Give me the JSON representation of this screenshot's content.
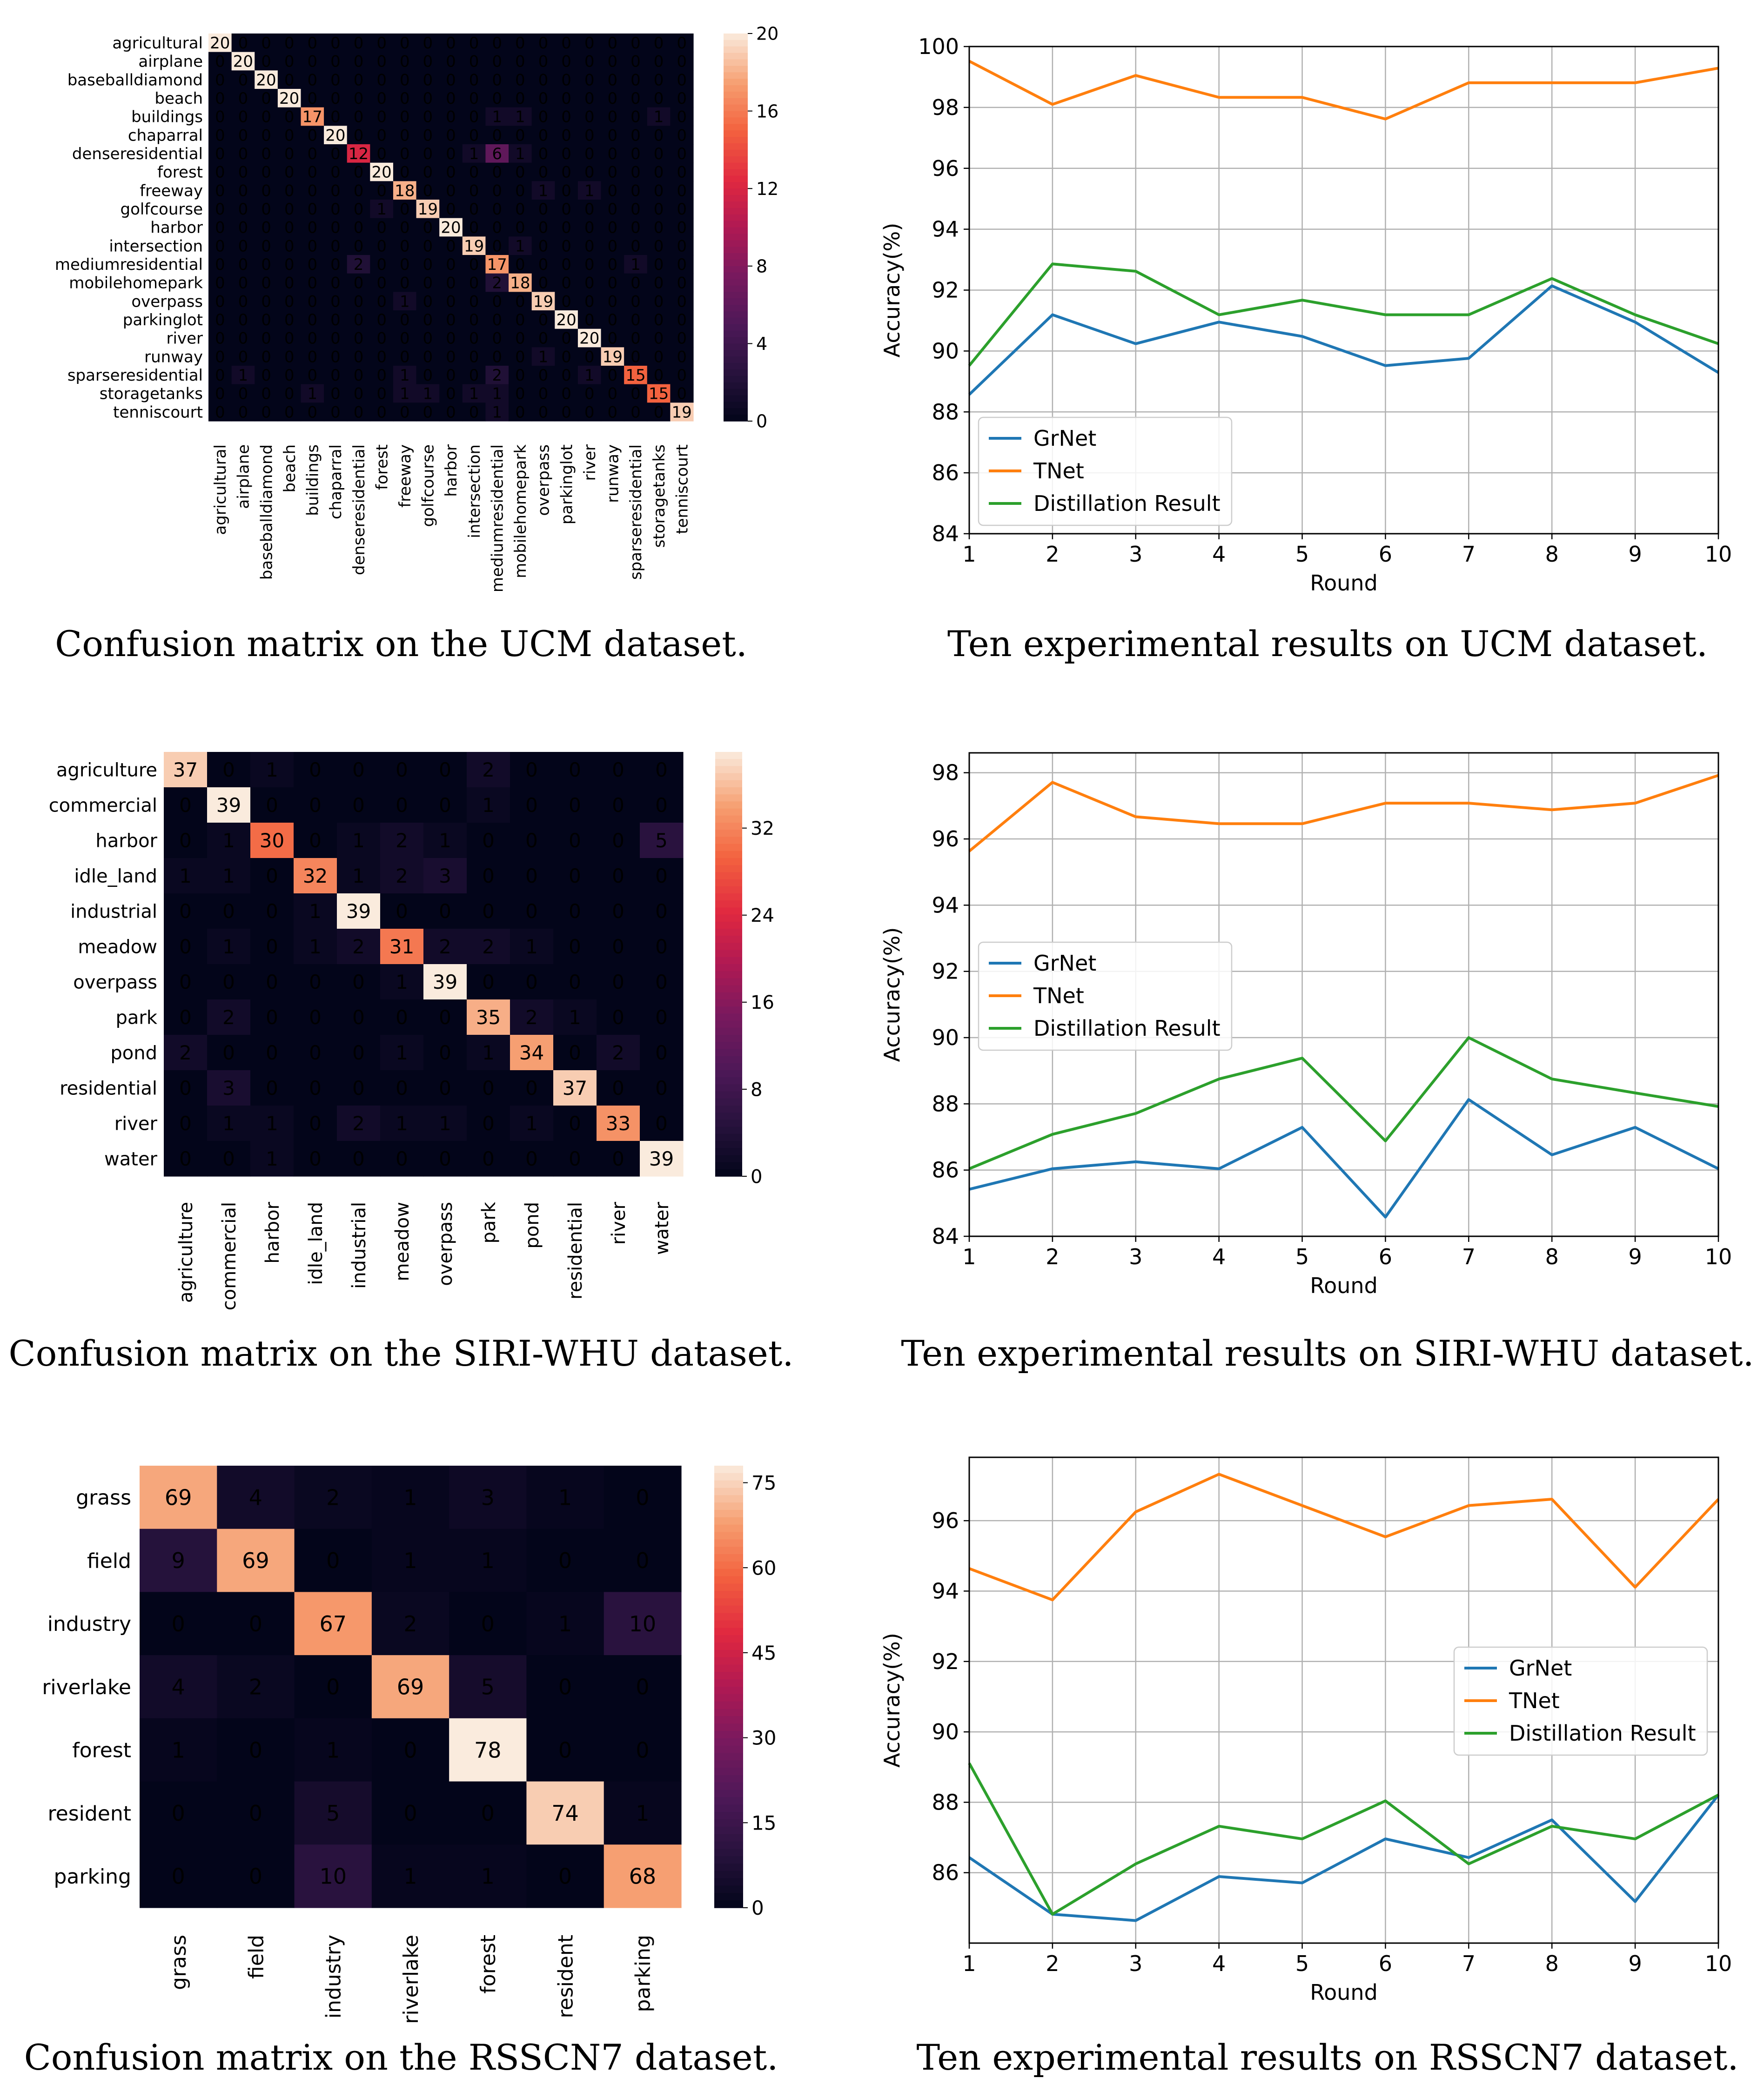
{
  "colors": {
    "grnet": "#1f77b4",
    "tnet": "#ff7f0e",
    "distill": "#2ca02c",
    "grid": "#b0b0b0"
  },
  "chart_data": [
    {
      "id": "cm_ucm",
      "type": "heatmap",
      "caption": "Confusion matrix on the UCM dataset.",
      "labels": [
        "agricultural",
        "airplane",
        "baseballdiamond",
        "beach",
        "buildings",
        "chaparral",
        "denseresidential",
        "forest",
        "freeway",
        "golfcourse",
        "harbor",
        "intersection",
        "mediumresidential",
        "mobilehomepark",
        "overpass",
        "parkinglot",
        "river",
        "runway",
        "sparseresidential",
        "storagetanks",
        "tenniscourt"
      ],
      "matrix": [
        [
          20,
          0,
          0,
          0,
          0,
          0,
          0,
          0,
          0,
          0,
          0,
          0,
          0,
          0,
          0,
          0,
          0,
          0,
          0,
          0,
          0
        ],
        [
          0,
          20,
          0,
          0,
          0,
          0,
          0,
          0,
          0,
          0,
          0,
          0,
          0,
          0,
          0,
          0,
          0,
          0,
          0,
          0,
          0
        ],
        [
          0,
          0,
          20,
          0,
          0,
          0,
          0,
          0,
          0,
          0,
          0,
          0,
          0,
          0,
          0,
          0,
          0,
          0,
          0,
          0,
          0
        ],
        [
          0,
          0,
          0,
          20,
          0,
          0,
          0,
          0,
          0,
          0,
          0,
          0,
          0,
          0,
          0,
          0,
          0,
          0,
          0,
          0,
          0
        ],
        [
          0,
          0,
          0,
          0,
          17,
          0,
          0,
          0,
          0,
          0,
          0,
          0,
          1,
          1,
          0,
          0,
          0,
          0,
          0,
          1,
          0
        ],
        [
          0,
          0,
          0,
          0,
          0,
          20,
          0,
          0,
          0,
          0,
          0,
          0,
          0,
          0,
          0,
          0,
          0,
          0,
          0,
          0,
          0
        ],
        [
          0,
          0,
          0,
          0,
          0,
          0,
          12,
          0,
          0,
          0,
          0,
          1,
          6,
          1,
          0,
          0,
          0,
          0,
          0,
          0,
          0
        ],
        [
          0,
          0,
          0,
          0,
          0,
          0,
          0,
          20,
          0,
          0,
          0,
          0,
          0,
          0,
          0,
          0,
          0,
          0,
          0,
          0,
          0
        ],
        [
          0,
          0,
          0,
          0,
          0,
          0,
          0,
          0,
          18,
          0,
          0,
          0,
          0,
          0,
          1,
          0,
          1,
          0,
          0,
          0,
          0
        ],
        [
          0,
          0,
          0,
          0,
          0,
          0,
          0,
          1,
          0,
          19,
          0,
          0,
          0,
          0,
          0,
          0,
          0,
          0,
          0,
          0,
          0
        ],
        [
          0,
          0,
          0,
          0,
          0,
          0,
          0,
          0,
          0,
          0,
          20,
          0,
          0,
          0,
          0,
          0,
          0,
          0,
          0,
          0,
          0
        ],
        [
          0,
          0,
          0,
          0,
          0,
          0,
          0,
          0,
          0,
          0,
          0,
          19,
          0,
          1,
          0,
          0,
          0,
          0,
          0,
          0,
          0
        ],
        [
          0,
          0,
          0,
          0,
          0,
          0,
          2,
          0,
          0,
          0,
          0,
          0,
          17,
          0,
          0,
          0,
          0,
          0,
          1,
          0,
          0
        ],
        [
          0,
          0,
          0,
          0,
          0,
          0,
          0,
          0,
          0,
          0,
          0,
          0,
          2,
          18,
          0,
          0,
          0,
          0,
          0,
          0,
          0
        ],
        [
          0,
          0,
          0,
          0,
          0,
          0,
          0,
          0,
          1,
          0,
          0,
          0,
          0,
          0,
          19,
          0,
          0,
          0,
          0,
          0,
          0
        ],
        [
          0,
          0,
          0,
          0,
          0,
          0,
          0,
          0,
          0,
          0,
          0,
          0,
          0,
          0,
          0,
          20,
          0,
          0,
          0,
          0,
          0
        ],
        [
          0,
          0,
          0,
          0,
          0,
          0,
          0,
          0,
          0,
          0,
          0,
          0,
          0,
          0,
          0,
          0,
          20,
          0,
          0,
          0,
          0
        ],
        [
          0,
          0,
          0,
          0,
          0,
          0,
          0,
          0,
          0,
          0,
          0,
          0,
          0,
          0,
          1,
          0,
          0,
          19,
          0,
          0,
          0
        ],
        [
          0,
          1,
          0,
          0,
          0,
          0,
          0,
          0,
          1,
          0,
          0,
          0,
          2,
          0,
          0,
          0,
          1,
          0,
          15,
          0,
          0
        ],
        [
          0,
          0,
          0,
          0,
          1,
          0,
          0,
          0,
          1,
          1,
          0,
          1,
          1,
          0,
          0,
          0,
          0,
          0,
          0,
          15,
          0
        ],
        [
          0,
          0,
          0,
          0,
          0,
          0,
          0,
          0,
          0,
          0,
          0,
          0,
          1,
          0,
          0,
          0,
          0,
          0,
          0,
          0,
          19
        ]
      ],
      "vmin": 0,
      "vmax": 20,
      "colorbar_ticks": [
        0,
        4,
        8,
        12,
        16,
        20
      ]
    },
    {
      "id": "line_ucm",
      "type": "line",
      "caption": "Ten experimental results on UCM dataset.",
      "x": [
        1,
        2,
        3,
        4,
        5,
        6,
        7,
        8,
        9,
        10
      ],
      "xlabel": "Round",
      "ylabel": "Accuracy(%)",
      "ylim": [
        84,
        100
      ],
      "xticks": [
        1,
        2,
        3,
        4,
        5,
        6,
        7,
        8,
        9,
        10
      ],
      "yticks": [
        84,
        86,
        88,
        90,
        92,
        94,
        96,
        98,
        100
      ],
      "legend_position": "bottom-left",
      "series": [
        {
          "name": "GrNet",
          "color_key": "grnet",
          "values": [
            88.57,
            91.19,
            90.24,
            90.95,
            90.48,
            89.52,
            89.76,
            92.14,
            90.95,
            89.29
          ]
        },
        {
          "name": "TNet",
          "color_key": "tnet",
          "values": [
            99.52,
            98.1,
            99.05,
            98.33,
            98.33,
            97.62,
            98.81,
            98.81,
            98.81,
            99.29
          ]
        },
        {
          "name": "Distillation Result",
          "color_key": "distill",
          "values": [
            89.52,
            92.86,
            92.62,
            91.19,
            91.67,
            91.19,
            91.19,
            92.38,
            91.19,
            90.24
          ]
        }
      ]
    },
    {
      "id": "cm_siri",
      "type": "heatmap",
      "caption": "Confusion matrix on the SIRI-WHU dataset.",
      "labels": [
        "agriculture",
        "commercial",
        "harbor",
        "idle_land",
        "industrial",
        "meadow",
        "overpass",
        "park",
        "pond",
        "residential",
        "river",
        "water"
      ],
      "matrix": [
        [
          37,
          0,
          1,
          0,
          0,
          0,
          0,
          2,
          0,
          0,
          0,
          0
        ],
        [
          0,
          39,
          0,
          0,
          0,
          0,
          0,
          1,
          0,
          0,
          0,
          0
        ],
        [
          0,
          1,
          30,
          0,
          1,
          2,
          1,
          0,
          0,
          0,
          0,
          5
        ],
        [
          1,
          1,
          0,
          32,
          1,
          2,
          3,
          0,
          0,
          0,
          0,
          0
        ],
        [
          0,
          0,
          0,
          1,
          39,
          0,
          0,
          0,
          0,
          0,
          0,
          0
        ],
        [
          0,
          1,
          0,
          1,
          2,
          31,
          2,
          2,
          1,
          0,
          0,
          0
        ],
        [
          0,
          0,
          0,
          0,
          0,
          1,
          39,
          0,
          0,
          0,
          0,
          0
        ],
        [
          0,
          2,
          0,
          0,
          0,
          0,
          0,
          35,
          2,
          1,
          0,
          0
        ],
        [
          2,
          0,
          0,
          0,
          0,
          1,
          0,
          1,
          34,
          0,
          2,
          0
        ],
        [
          0,
          3,
          0,
          0,
          0,
          0,
          0,
          0,
          0,
          37,
          0,
          0
        ],
        [
          0,
          1,
          1,
          0,
          2,
          1,
          1,
          0,
          1,
          0,
          33,
          0
        ],
        [
          0,
          0,
          1,
          0,
          0,
          0,
          0,
          0,
          0,
          0,
          0,
          39
        ]
      ],
      "vmin": 0,
      "vmax": 39,
      "colorbar_ticks": [
        0,
        8,
        16,
        24,
        32
      ]
    },
    {
      "id": "line_siri",
      "type": "line",
      "caption": "Ten experimental results on SIRI-WHU dataset.",
      "x": [
        1,
        2,
        3,
        4,
        5,
        6,
        7,
        8,
        9,
        10
      ],
      "xlabel": "Round",
      "ylabel": "Accuracy(%)",
      "ylim": [
        84,
        98.6
      ],
      "xticks": [
        1,
        2,
        3,
        4,
        5,
        6,
        7,
        8,
        9,
        10
      ],
      "yticks": [
        84,
        86,
        88,
        90,
        92,
        94,
        96,
        98
      ],
      "legend_position": "center-left",
      "series": [
        {
          "name": "GrNet",
          "color_key": "grnet",
          "values": [
            85.42,
            86.04,
            86.25,
            86.04,
            87.29,
            84.58,
            88.13,
            86.46,
            87.29,
            86.04
          ]
        },
        {
          "name": "TNet",
          "color_key": "tnet",
          "values": [
            95.63,
            97.71,
            96.67,
            96.46,
            96.46,
            97.08,
            97.08,
            96.88,
            97.08,
            97.92
          ]
        },
        {
          "name": "Distillation Result",
          "color_key": "distill",
          "values": [
            86.04,
            87.08,
            87.71,
            88.75,
            89.38,
            86.88,
            90.0,
            88.75,
            88.33,
            87.92
          ]
        }
      ]
    },
    {
      "id": "cm_rsscn7",
      "type": "heatmap",
      "caption": "Confusion matrix on the RSSCN7 dataset.",
      "labels": [
        "grass",
        "field",
        "industry",
        "riverlake",
        "forest",
        "resident",
        "parking"
      ],
      "matrix": [
        [
          69,
          4,
          2,
          1,
          3,
          1,
          0
        ],
        [
          9,
          69,
          0,
          1,
          1,
          0,
          0
        ],
        [
          0,
          0,
          67,
          2,
          0,
          1,
          10
        ],
        [
          4,
          2,
          0,
          69,
          5,
          0,
          0
        ],
        [
          1,
          0,
          1,
          0,
          78,
          0,
          0
        ],
        [
          0,
          0,
          5,
          0,
          0,
          74,
          1
        ],
        [
          0,
          0,
          10,
          1,
          1,
          0,
          68
        ]
      ],
      "vmin": 0,
      "vmax": 78,
      "colorbar_ticks": [
        0,
        15,
        30,
        45,
        60,
        75
      ]
    },
    {
      "id": "line_rsscn7",
      "type": "line",
      "caption": "Ten experimental results on RSSCN7 dataset.",
      "x": [
        1,
        2,
        3,
        4,
        5,
        6,
        7,
        8,
        9,
        10
      ],
      "xlabel": "Round",
      "ylabel": "Accuracy(%)",
      "ylim": [
        84.0,
        97.8
      ],
      "xticks": [
        1,
        2,
        3,
        4,
        5,
        6,
        7,
        8,
        9,
        10
      ],
      "yticks": [
        86,
        88,
        90,
        92,
        94,
        96
      ],
      "legend_position": "center-right",
      "series": [
        {
          "name": "GrNet",
          "color_key": "grnet",
          "values": [
            86.43,
            84.82,
            84.64,
            85.89,
            85.71,
            86.96,
            86.43,
            87.5,
            85.18,
            88.21
          ]
        },
        {
          "name": "TNet",
          "color_key": "tnet",
          "values": [
            94.64,
            93.75,
            96.25,
            97.32,
            96.43,
            95.54,
            96.43,
            96.61,
            94.11,
            96.61
          ]
        },
        {
          "name": "Distillation Result",
          "color_key": "distill",
          "values": [
            89.11,
            84.82,
            86.25,
            87.32,
            86.96,
            88.04,
            86.25,
            87.32,
            86.96,
            88.21
          ]
        }
      ]
    }
  ]
}
